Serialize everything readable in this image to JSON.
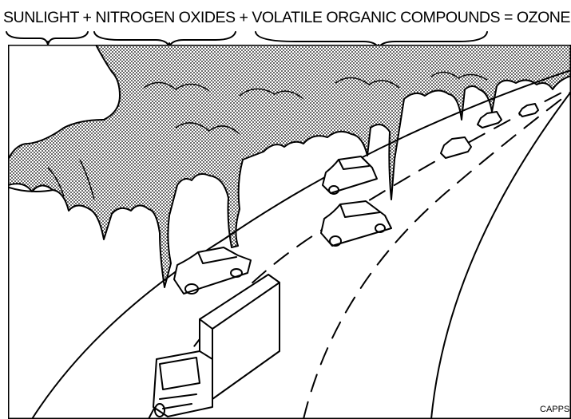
{
  "header": {
    "title": "SUNLIGHT + NITROGEN OXIDES + VOLATILE ORGANIC COMPOUNDS = OZONE"
  },
  "credit": "CAPPS"
}
